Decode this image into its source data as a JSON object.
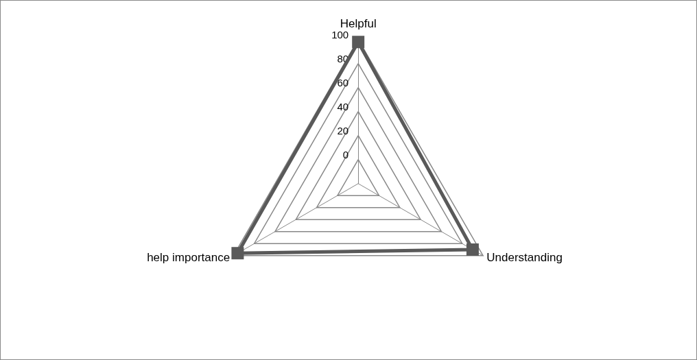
{
  "chart_data": {
    "type": "radar",
    "categories": [
      "Helpful",
      "Understanding",
      "help importance"
    ],
    "series": [
      {
        "color": "#595959",
        "values": [
          98,
          90,
          96
        ]
      }
    ],
    "ylim": [
      -20,
      100
    ],
    "yticks": [
      0,
      20,
      40,
      60,
      80,
      100
    ],
    "marker": "square"
  }
}
